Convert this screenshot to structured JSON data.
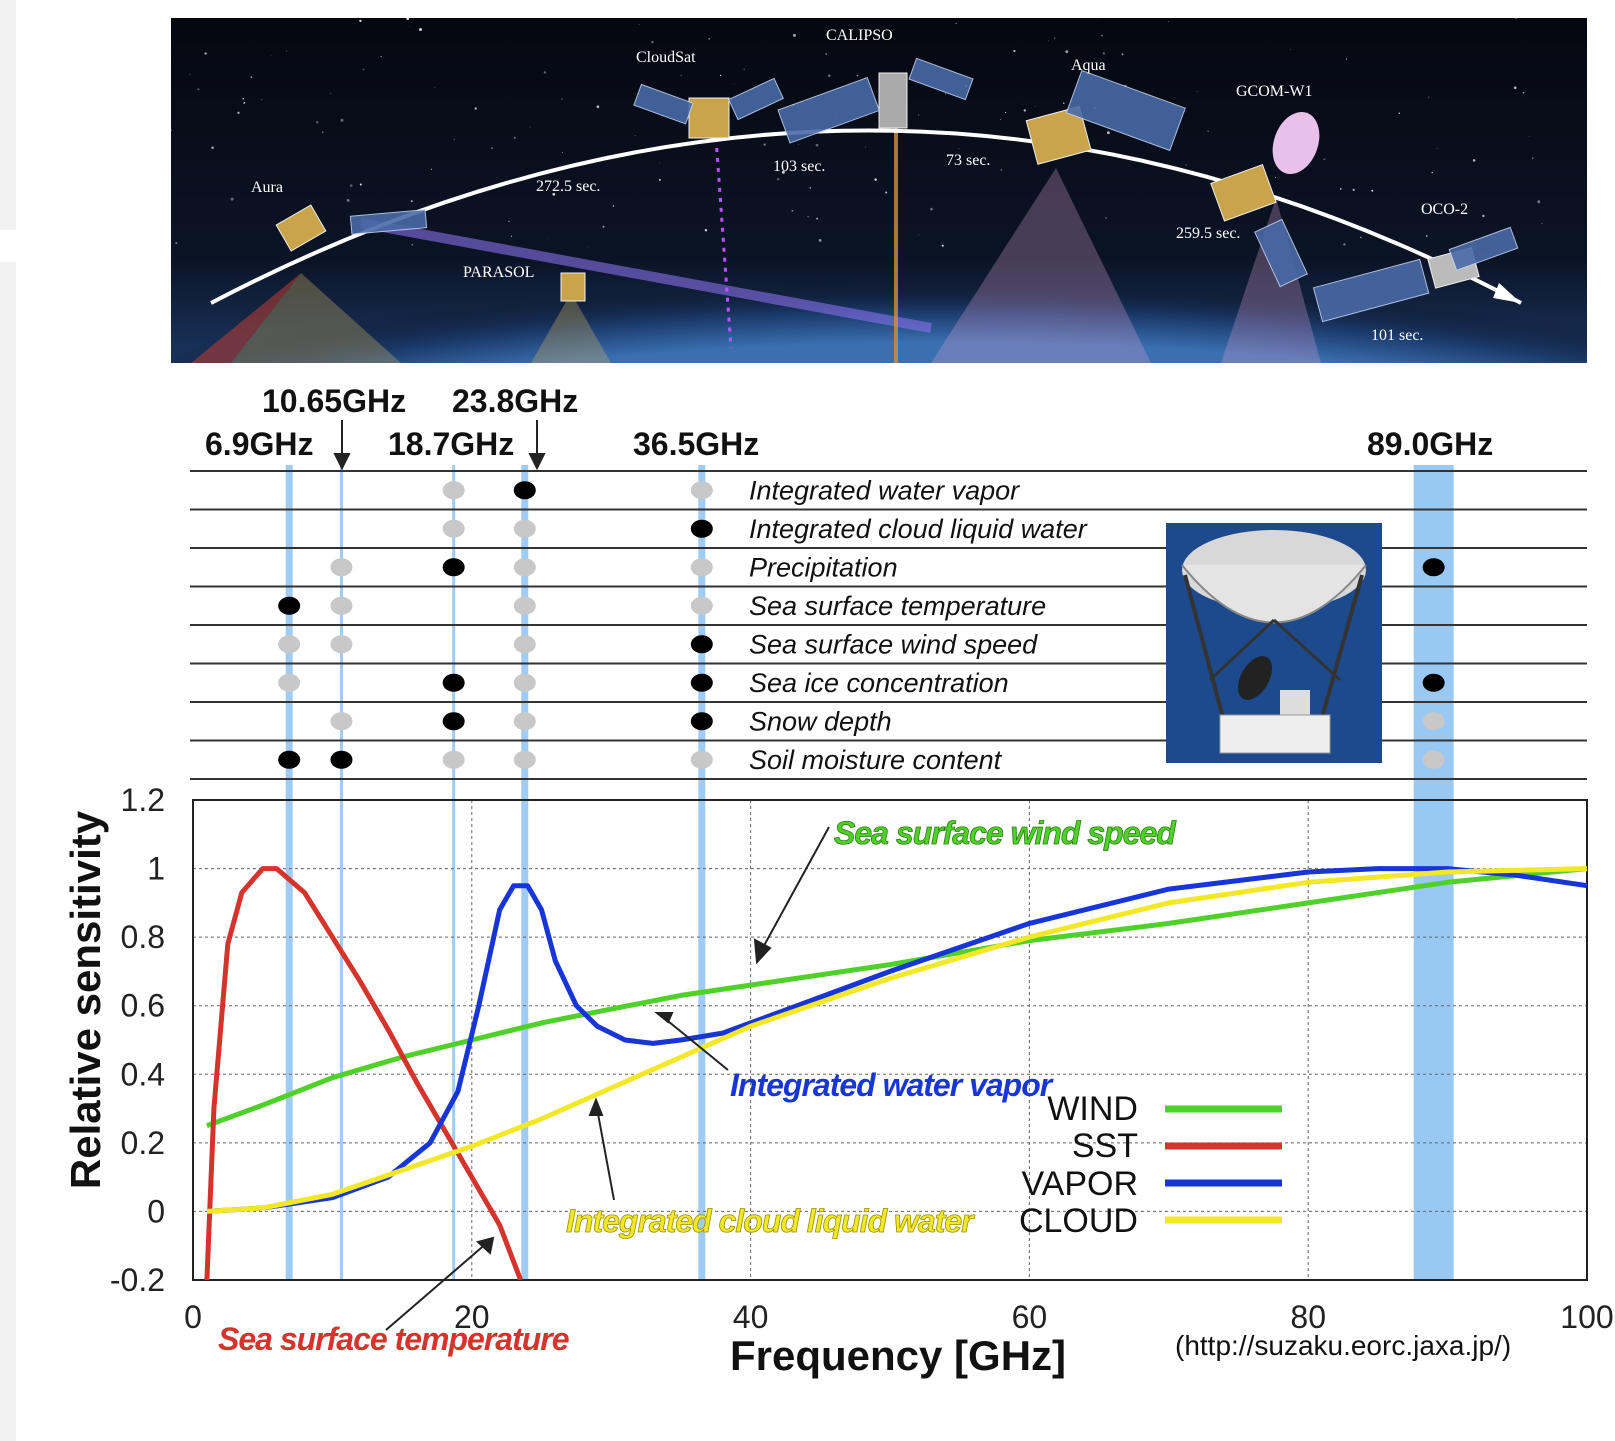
{
  "banner": {
    "satellites": [
      "Aura",
      "PARASOL",
      "CloudSat",
      "CALIPSO",
      "Aqua",
      "GCOM-W1",
      "OCO-2"
    ],
    "intervals": [
      "272.5 sec.",
      "103 sec.",
      "73 sec.",
      "259.5 sec.",
      "101 sec."
    ]
  },
  "frequency_markers": {
    "labels": [
      "6.9GHz",
      "10.65GHz",
      "18.7GHz",
      "23.8GHz",
      "36.5GHz",
      "89.0GHz"
    ],
    "values": [
      6.9,
      10.65,
      18.7,
      23.8,
      36.5,
      89.0
    ]
  },
  "sensitivity_table": {
    "rows": [
      {
        "label": "Integrated water vapor",
        "marks": [
          "none",
          "none",
          "gray",
          "black",
          "gray",
          "none"
        ]
      },
      {
        "label": "Integrated cloud liquid water",
        "marks": [
          "none",
          "none",
          "gray",
          "gray",
          "black",
          "none"
        ]
      },
      {
        "label": "Precipitation",
        "marks": [
          "none",
          "gray",
          "black",
          "gray",
          "gray",
          "black"
        ]
      },
      {
        "label": "Sea surface temperature",
        "marks": [
          "black",
          "gray",
          "none",
          "gray",
          "gray",
          "none"
        ]
      },
      {
        "label": "Sea surface wind speed",
        "marks": [
          "gray",
          "gray",
          "none",
          "gray",
          "black",
          "none"
        ]
      },
      {
        "label": "Sea ice concentration",
        "marks": [
          "gray",
          "none",
          "black",
          "gray",
          "black",
          "black"
        ]
      },
      {
        "label": "Snow depth",
        "marks": [
          "none",
          "gray",
          "black",
          "gray",
          "black",
          "gray"
        ]
      },
      {
        "label": "Soil moisture content",
        "marks": [
          "black",
          "black",
          "gray",
          "gray",
          "gray",
          "gray"
        ]
      }
    ]
  },
  "chart_data": {
    "type": "line",
    "xlabel": "Frequency [GHz]",
    "ylabel": "Relative sensitivity",
    "xlim": [
      0,
      100
    ],
    "ylim": [
      -0.2,
      1.2
    ],
    "x_ticks": [
      0,
      20,
      40,
      60,
      80,
      100
    ],
    "y_ticks": [
      -0.2,
      0,
      0.2,
      0.4,
      0.6,
      0.8,
      1,
      1.2
    ],
    "y_tick_labels": [
      "-0.2",
      "0",
      "0.2",
      "0.4",
      "0.6",
      "0.8",
      "1",
      "1.2"
    ],
    "grid": true,
    "legend_position": "bottom-right",
    "series": [
      {
        "name": "WIND",
        "color": "#4fd12a",
        "x": [
          1,
          5,
          10,
          15,
          20,
          25,
          30,
          35,
          40,
          50,
          60,
          70,
          80,
          90,
          100
        ],
        "y": [
          0.25,
          0.31,
          0.39,
          0.45,
          0.5,
          0.55,
          0.59,
          0.63,
          0.66,
          0.72,
          0.79,
          0.84,
          0.9,
          0.96,
          1.0
        ]
      },
      {
        "name": "SST",
        "color": "#d4342b",
        "x": [
          1,
          1.5,
          2.5,
          3.5,
          5,
          6,
          8,
          10,
          12,
          14,
          16,
          18,
          20,
          22,
          23.5
        ],
        "y": [
          -0.2,
          0.3,
          0.78,
          0.93,
          1.0,
          1.0,
          0.93,
          0.8,
          0.67,
          0.53,
          0.38,
          0.24,
          0.1,
          -0.04,
          -0.2
        ]
      },
      {
        "name": "VAPOR",
        "color": "#1836d6",
        "x": [
          1,
          5,
          10,
          14,
          17,
          19,
          20.5,
          22,
          23,
          24,
          25,
          26,
          27.5,
          29,
          31,
          33,
          35,
          38,
          42,
          50,
          60,
          70,
          80,
          85,
          90,
          95,
          100
        ],
        "y": [
          0.0,
          0.01,
          0.04,
          0.1,
          0.2,
          0.35,
          0.6,
          0.88,
          0.95,
          0.95,
          0.88,
          0.73,
          0.6,
          0.54,
          0.5,
          0.49,
          0.5,
          0.52,
          0.58,
          0.7,
          0.84,
          0.94,
          0.99,
          1.0,
          1.0,
          0.98,
          0.95
        ]
      },
      {
        "name": "CLOUD",
        "color": "#f2e827",
        "x": [
          1,
          5,
          10,
          15,
          20,
          25,
          30,
          35,
          40,
          50,
          60,
          70,
          80,
          90,
          100
        ],
        "y": [
          0.0,
          0.01,
          0.05,
          0.12,
          0.19,
          0.27,
          0.36,
          0.45,
          0.54,
          0.68,
          0.8,
          0.9,
          0.96,
          0.99,
          1.0
        ]
      }
    ],
    "highlight_bands": [
      6.9,
      10.65,
      18.7,
      23.8,
      36.5,
      89.0
    ],
    "annotations": [
      {
        "text": "Sea surface wind speed",
        "color": "#4fd12a"
      },
      {
        "text": "Integrated water vapor",
        "color": "#1836d6"
      },
      {
        "text": "Integrated cloud liquid water",
        "color": "#f2e827"
      },
      {
        "text": "Sea surface temperature",
        "color": "#d4342b"
      }
    ]
  },
  "credit": "(http://suzaku.eorc.jaxa.jp/)"
}
